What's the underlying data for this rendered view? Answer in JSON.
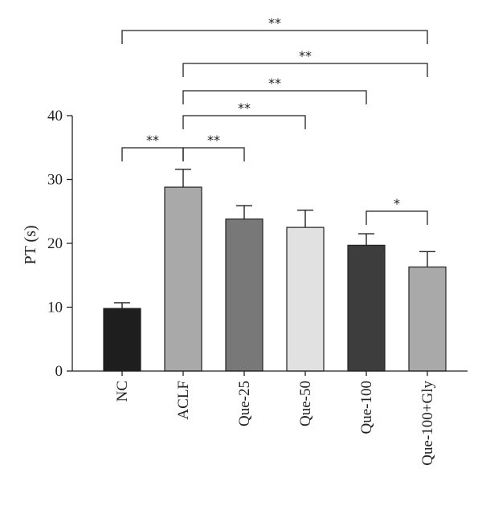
{
  "chart_data": {
    "type": "bar",
    "title": "",
    "xlabel": "",
    "ylabel": "PT (s)",
    "ylim": [
      0,
      40
    ],
    "yticks": [
      0,
      10,
      20,
      30,
      40
    ],
    "grid": false,
    "categories": [
      "NC",
      "ACLF",
      "Que-25",
      "Que-50",
      "Que-100",
      "Que-100+Gly"
    ],
    "values": [
      9.8,
      28.8,
      23.8,
      22.5,
      19.7,
      16.3
    ],
    "errors": [
      0.9,
      2.8,
      2.1,
      2.7,
      1.8,
      2.4
    ],
    "colors": [
      "#1e1e1e",
      "#a9a9a9",
      "#787878",
      "#e1e1e1",
      "#3d3d3d",
      "#a9a9a9"
    ],
    "significance": [
      {
        "from": "NC",
        "to": "ACLF",
        "label": "**"
      },
      {
        "from": "ACLF",
        "to": "Que-25",
        "label": "**"
      },
      {
        "from": "ACLF",
        "to": "Que-50",
        "label": "**"
      },
      {
        "from": "ACLF",
        "to": "Que-100",
        "label": "**"
      },
      {
        "from": "ACLF",
        "to": "Que-100+Gly",
        "label": "**"
      },
      {
        "from": "NC",
        "to": "Que-100+Gly",
        "label": "**"
      },
      {
        "from": "Que-100",
        "to": "Que-100+Gly",
        "label": "*"
      }
    ]
  }
}
